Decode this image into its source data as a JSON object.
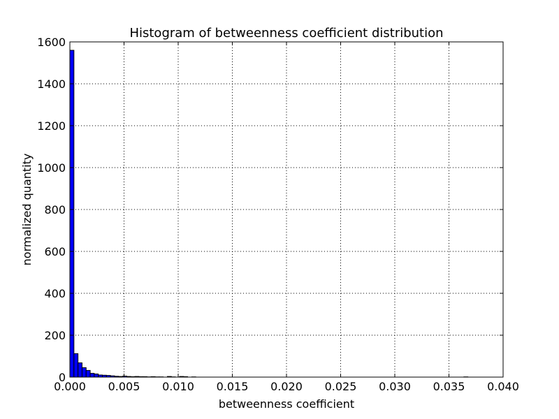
{
  "chart_data": {
    "type": "bar",
    "title": "Histogram of betweenness coefficient distribution",
    "xlabel": "betweenness coefficient",
    "ylabel": "normalized quantity",
    "xlim": [
      0.0,
      0.04
    ],
    "ylim": [
      0,
      1600
    ],
    "x_ticks": [
      "0.000",
      "0.005",
      "0.010",
      "0.015",
      "0.020",
      "0.025",
      "0.030",
      "0.035",
      "0.040"
    ],
    "y_ticks": [
      "0",
      "200",
      "400",
      "600",
      "800",
      "1000",
      "1200",
      "1400",
      "1600"
    ],
    "grid": true,
    "bin_width": 0.000375,
    "bins": [
      {
        "start": 0.0,
        "value": 1560
      },
      {
        "start": 0.000375,
        "value": 112
      },
      {
        "start": 0.00075,
        "value": 68
      },
      {
        "start": 0.001125,
        "value": 45
      },
      {
        "start": 0.0015,
        "value": 32
      },
      {
        "start": 0.001875,
        "value": 18
      },
      {
        "start": 0.00225,
        "value": 15
      },
      {
        "start": 0.002625,
        "value": 10
      },
      {
        "start": 0.003,
        "value": 9
      },
      {
        "start": 0.003375,
        "value": 8
      },
      {
        "start": 0.00375,
        "value": 6
      },
      {
        "start": 0.004125,
        "value": 4
      },
      {
        "start": 0.0045,
        "value": 3
      },
      {
        "start": 0.004875,
        "value": 5
      },
      {
        "start": 0.00525,
        "value": 3
      },
      {
        "start": 0.005625,
        "value": 2
      },
      {
        "start": 0.006,
        "value": 3
      },
      {
        "start": 0.006375,
        "value": 2
      },
      {
        "start": 0.00675,
        "value": 2
      },
      {
        "start": 0.007125,
        "value": 1
      },
      {
        "start": 0.0075,
        "value": 2
      },
      {
        "start": 0.007875,
        "value": 1
      },
      {
        "start": 0.00825,
        "value": 1
      },
      {
        "start": 0.008625,
        "value": 0
      },
      {
        "start": 0.009,
        "value": 3
      },
      {
        "start": 0.009375,
        "value": 1
      },
      {
        "start": 0.00975,
        "value": 0
      },
      {
        "start": 0.010125,
        "value": 3
      },
      {
        "start": 0.0105,
        "value": 2
      },
      {
        "start": 0.010875,
        "value": 0
      },
      {
        "start": 0.01125,
        "value": 1
      },
      {
        "start": 0.036375,
        "value": 1
      }
    ],
    "colors": {
      "bar_fill": "#0000ff",
      "bar_edge": "#000000",
      "grid": "#000000",
      "axes": "#000000",
      "background": "#ffffff"
    }
  }
}
